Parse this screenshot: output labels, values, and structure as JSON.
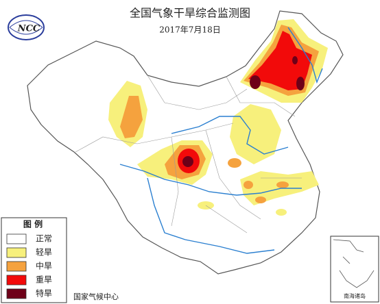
{
  "header": {
    "title": "全国气象干旱综合监测图",
    "date": "2017年7月18日",
    "logo": "NCC"
  },
  "legend": {
    "title": "图  例",
    "items": [
      {
        "label": "正常",
        "color": "#ffffff"
      },
      {
        "label": "轻旱",
        "color": "#f7f07c"
      },
      {
        "label": "中旱",
        "color": "#f5a23e"
      },
      {
        "label": "重旱",
        "color": "#f20a0a"
      },
      {
        "label": "特旱",
        "color": "#6e0018"
      }
    ]
  },
  "footer": "国家气候中心",
  "inset": {
    "label": "南海诸岛"
  }
}
